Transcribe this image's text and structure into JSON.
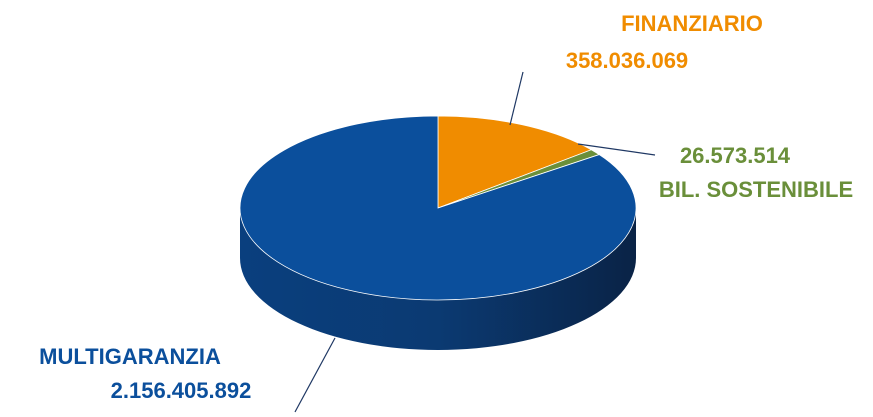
{
  "chart_data": {
    "type": "pie",
    "categories": [
      "FINANZIARIO",
      "BIL. SOSTENIBILE",
      "MULTIGARANZIA"
    ],
    "values": [
      358036069,
      26573514,
      2156405892
    ],
    "value_labels": [
      "358.036.069",
      "26.573.514",
      "2.156.405.892"
    ],
    "colors": [
      "#f08c00",
      "#6a8f3a",
      "#0b4f9c"
    ]
  }
}
